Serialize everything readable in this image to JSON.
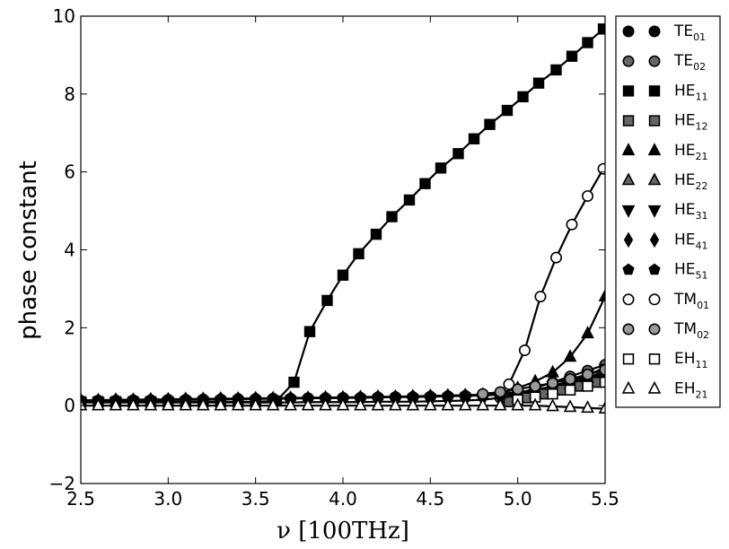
{
  "chart_data": {
    "type": "line",
    "title": "",
    "xlabel": "ν [100THz]",
    "ylabel": "phase constant",
    "xlim": [
      2.5,
      5.5
    ],
    "ylim": [
      -2,
      10
    ],
    "xticks": [
      "2.5",
      "3.0",
      "3.5",
      "4.0",
      "4.5",
      "5.0",
      "5.5"
    ],
    "yticks": [
      "−2",
      "0",
      "2",
      "4",
      "6",
      "8",
      "10"
    ],
    "grid": false,
    "legend_position": "right, outside plot",
    "series": [
      {
        "name": "TE01",
        "label": "TE",
        "sub": "01",
        "marker": "circle",
        "fill": "#000000",
        "x": [
          2.5,
          2.6,
          2.7,
          2.8,
          2.9,
          3.0,
          3.1,
          3.2,
          3.3,
          3.4,
          3.5,
          3.6,
          3.7,
          3.8,
          3.9,
          4.0,
          4.1,
          4.2,
          4.3,
          4.4,
          4.5,
          4.6,
          4.7,
          4.8,
          4.9,
          5.0,
          5.1,
          5.2,
          5.3,
          5.4,
          5.5
        ],
        "y": [
          0.12,
          0.13,
          0.13,
          0.14,
          0.14,
          0.15,
          0.15,
          0.16,
          0.16,
          0.17,
          0.17,
          0.18,
          0.18,
          0.19,
          0.19,
          0.2,
          0.2,
          0.21,
          0.22,
          0.22,
          0.23,
          0.24,
          0.25,
          0.26,
          0.28,
          0.32,
          0.4,
          0.5,
          0.62,
          0.78,
          0.98
        ]
      },
      {
        "name": "TE02",
        "label": "TE",
        "sub": "02",
        "marker": "circle",
        "fill": "#666666",
        "x": [
          4.9,
          5.0,
          5.1,
          5.2,
          5.3,
          5.4,
          5.5
        ],
        "y": [
          0.2,
          0.3,
          0.45,
          0.6,
          0.75,
          0.9,
          1.05
        ]
      },
      {
        "name": "HE11",
        "label": "HE",
        "sub": "11",
        "marker": "square",
        "fill": "#000000",
        "x": [
          2.5,
          2.6,
          2.7,
          2.8,
          2.9,
          3.0,
          3.1,
          3.2,
          3.3,
          3.4,
          3.5,
          3.62,
          3.72,
          3.81,
          3.91,
          4.0,
          4.09,
          4.19,
          4.28,
          4.38,
          4.47,
          4.56,
          4.66,
          4.75,
          4.84,
          4.94,
          5.03,
          5.12,
          5.22,
          5.31,
          5.4,
          5.49
        ],
        "y": [
          0.1,
          0.1,
          0.1,
          0.1,
          0.1,
          0.1,
          0.1,
          0.1,
          0.1,
          0.1,
          0.1,
          0.12,
          0.6,
          1.9,
          2.7,
          3.35,
          3.9,
          4.4,
          4.85,
          5.28,
          5.7,
          6.1,
          6.47,
          6.85,
          7.22,
          7.58,
          7.93,
          8.28,
          8.62,
          8.97,
          9.32,
          9.67
        ]
      },
      {
        "name": "HE12",
        "label": "HE",
        "sub": "12",
        "marker": "square",
        "fill": "#666666",
        "x": [
          4.95,
          5.05,
          5.15,
          5.25,
          5.35,
          5.45,
          5.5
        ],
        "y": [
          0.1,
          0.2,
          0.3,
          0.4,
          0.5,
          0.6,
          0.65
        ]
      },
      {
        "name": "HE21",
        "label": "HE",
        "sub": "21",
        "marker": "triangle",
        "fill": "#000000",
        "x": [
          4.9,
          5.0,
          5.1,
          5.2,
          5.3,
          5.4,
          5.5
        ],
        "y": [
          0.3,
          0.45,
          0.62,
          0.85,
          1.25,
          1.85,
          2.8
        ]
      },
      {
        "name": "HE22",
        "label": "HE",
        "sub": "22",
        "marker": "triangle",
        "fill": "#666666",
        "x": [
          5.0,
          5.1,
          5.2,
          5.3,
          5.4,
          5.5
        ],
        "y": [
          0.2,
          0.3,
          0.4,
          0.55,
          0.7,
          0.85
        ]
      },
      {
        "name": "HE31",
        "label": "HE",
        "sub": "31",
        "marker": "triangle-down",
        "fill": "#000000",
        "x": [
          2.5,
          2.6,
          2.7,
          2.8,
          2.9,
          3.0,
          3.1,
          3.2,
          3.3,
          3.4,
          3.5,
          3.6,
          3.7,
          3.8,
          3.9,
          4.0,
          4.1,
          4.2,
          4.3,
          4.4,
          4.5,
          4.6,
          4.7,
          4.8,
          4.9,
          5.0,
          5.1,
          5.2,
          5.3,
          5.4,
          5.5
        ],
        "y": [
          0.08,
          0.08,
          0.08,
          0.08,
          0.08,
          0.08,
          0.08,
          0.08,
          0.08,
          0.08,
          0.08,
          0.08,
          0.08,
          0.09,
          0.09,
          0.09,
          0.09,
          0.1,
          0.1,
          0.1,
          0.11,
          0.12,
          0.13,
          0.15,
          0.2,
          0.28,
          0.38,
          0.5,
          0.64,
          0.8,
          0.95
        ]
      },
      {
        "name": "HE41",
        "label": "HE",
        "sub": "41",
        "marker": "diamond",
        "fill": "#000000",
        "x": [
          2.5,
          2.6,
          2.7,
          2.8,
          2.9,
          3.0,
          3.1,
          3.2,
          3.3,
          3.4,
          3.5,
          3.6,
          3.7,
          3.8,
          3.9,
          4.0,
          4.1,
          4.2,
          4.3,
          4.4,
          4.5,
          4.6,
          4.7,
          4.8,
          4.9,
          5.0,
          5.1,
          5.2,
          5.3,
          5.4,
          5.5
        ],
        "y": [
          0.13,
          0.13,
          0.14,
          0.14,
          0.15,
          0.15,
          0.16,
          0.16,
          0.17,
          0.17,
          0.18,
          0.18,
          0.19,
          0.19,
          0.2,
          0.2,
          0.21,
          0.22,
          0.22,
          0.23,
          0.24,
          0.25,
          0.26,
          0.27,
          0.29,
          0.33,
          0.4,
          0.48,
          0.58,
          0.72,
          0.88
        ]
      },
      {
        "name": "HE51",
        "label": "HE",
        "sub": "51",
        "marker": "pentagon",
        "fill": "#000000",
        "x": [
          2.5,
          2.6,
          2.7,
          2.8,
          2.9,
          3.0,
          3.1,
          3.2,
          3.3,
          3.4,
          3.5,
          3.6,
          3.7,
          3.8,
          3.9,
          4.0,
          4.1,
          4.2,
          4.3,
          4.4,
          4.5,
          4.6,
          4.7,
          4.8,
          4.9,
          5.0,
          5.1,
          5.2,
          5.3,
          5.4,
          5.5
        ],
        "y": [
          0.14,
          0.14,
          0.15,
          0.15,
          0.16,
          0.16,
          0.17,
          0.17,
          0.18,
          0.18,
          0.19,
          0.19,
          0.2,
          0.2,
          0.21,
          0.21,
          0.22,
          0.23,
          0.23,
          0.24,
          0.25,
          0.26,
          0.27,
          0.28,
          0.3,
          0.34,
          0.4,
          0.47,
          0.56,
          0.68,
          0.82
        ]
      },
      {
        "name": "TM01",
        "label": "TM",
        "sub": "01",
        "marker": "circle",
        "fill": "#ffffff",
        "x": [
          4.95,
          5.04,
          5.13,
          5.22,
          5.31,
          5.4,
          5.49
        ],
        "y": [
          0.55,
          1.42,
          2.8,
          3.8,
          4.65,
          5.38,
          6.08
        ]
      },
      {
        "name": "TM02",
        "label": "TM",
        "sub": "02",
        "marker": "circle",
        "fill": "#999999",
        "x": [
          4.8,
          4.9,
          5.0,
          5.1,
          5.2,
          5.3,
          5.4,
          5.5
        ],
        "y": [
          0.3,
          0.35,
          0.42,
          0.5,
          0.58,
          0.68,
          0.8,
          0.92
        ]
      },
      {
        "name": "EH11",
        "label": "EH",
        "sub": "11",
        "marker": "square",
        "fill": "#ffffff",
        "x": [
          5.0,
          5.1,
          5.2,
          5.3,
          5.4,
          5.5
        ],
        "y": [
          0.15,
          0.22,
          0.3,
          0.4,
          0.5,
          0.6
        ]
      },
      {
        "name": "EH21",
        "label": "EH",
        "sub": "21",
        "marker": "triangle",
        "fill": "#ffffff",
        "x": [
          2.5,
          2.6,
          2.7,
          2.8,
          2.9,
          3.0,
          3.1,
          3.2,
          3.3,
          3.4,
          3.5,
          3.6,
          3.7,
          3.8,
          3.9,
          4.0,
          4.1,
          4.2,
          4.3,
          4.4,
          4.5,
          4.6,
          4.7,
          4.8,
          4.9,
          5.0,
          5.1,
          5.2,
          5.3,
          5.4,
          5.5
        ],
        "y": [
          0.0,
          0.0,
          0.0,
          0.0,
          0.0,
          0.0,
          0.0,
          0.0,
          0.0,
          0.0,
          0.0,
          0.0,
          0.0,
          0.0,
          0.0,
          0.0,
          0.0,
          0.0,
          0.0,
          0.0,
          0.0,
          0.0,
          0.0,
          0.0,
          0.0,
          0.0,
          0.0,
          -0.02,
          -0.04,
          -0.06,
          -0.08
        ]
      }
    ]
  }
}
